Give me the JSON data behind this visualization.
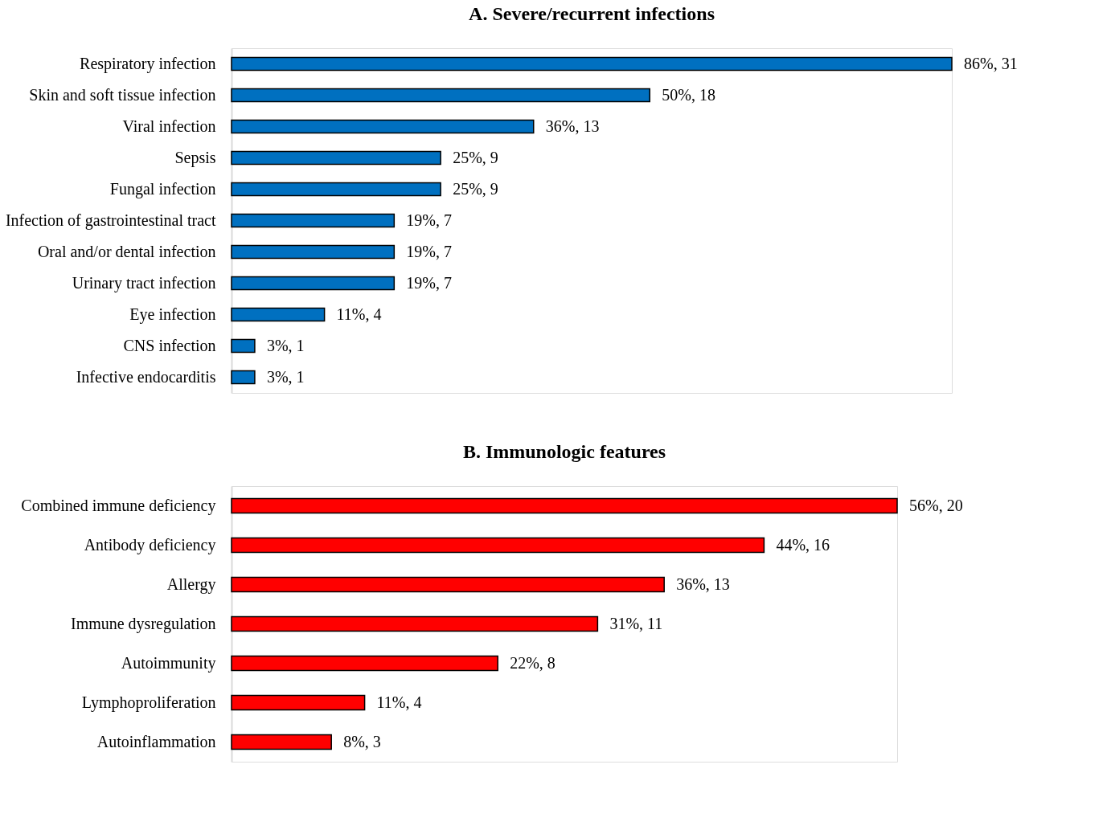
{
  "chart_data": [
    {
      "type": "bar",
      "orientation": "horizontal",
      "title": "A. Severe/recurrent infections",
      "color": "#0070c0",
      "categories": [
        "Respiratory infection",
        "Skin and soft tissue infection",
        "Viral infection",
        "Sepsis",
        "Fungal infection",
        "Infection of gastrointestinal tract",
        "Oral and/or dental infection",
        "Urinary tract infection",
        "Eye infection",
        "CNS infection",
        "Infective endocarditis"
      ],
      "values": [
        31,
        18,
        13,
        9,
        9,
        7,
        7,
        7,
        4,
        1,
        1
      ],
      "value_labels": [
        "86%, 31",
        "50%, 18",
        "36%, 13",
        "25%, 9",
        "25%, 9",
        "19%, 7",
        "19%, 7",
        "19%, 7",
        "11%, 4",
        "3%, 1",
        "3%, 1"
      ]
    },
    {
      "type": "bar",
      "orientation": "horizontal",
      "title": "B. Immunologic features",
      "color": "#ff0000",
      "categories": [
        "Combined immune deficiency",
        "Antibody deficiency",
        "Allergy",
        "Immune dysregulation",
        "Autoimmunity",
        "Lymphoproliferation",
        "Autoinflammation"
      ],
      "values": [
        20,
        16,
        13,
        11,
        8,
        4,
        3
      ],
      "value_labels": [
        "56%, 20",
        "44%, 16",
        "36%, 13",
        "31%, 11",
        "22%, 8",
        "11%, 4",
        "8%, 3"
      ]
    }
  ]
}
